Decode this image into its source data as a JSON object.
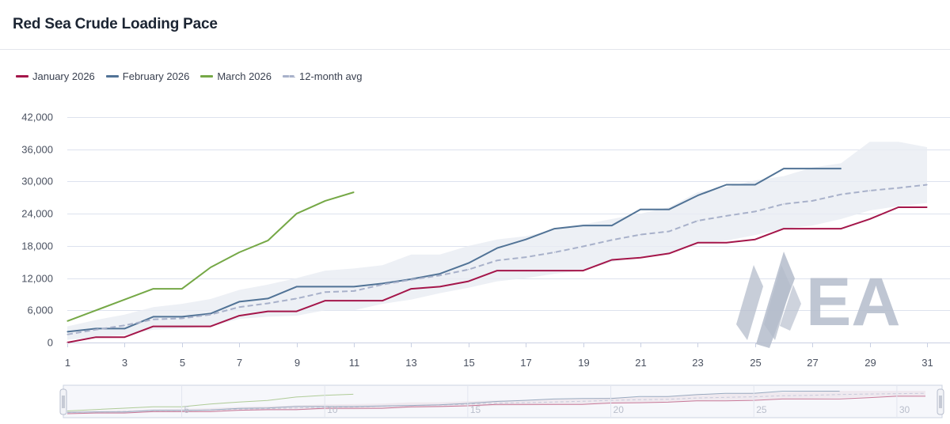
{
  "title": "Red Sea Crude Loading Pace",
  "legend": [
    {
      "name": "January 2026",
      "color": "#a4164a",
      "dashed": false
    },
    {
      "name": "February 2026",
      "color": "#517396",
      "dashed": false
    },
    {
      "name": "March 2026",
      "color": "#75a846",
      "dashed": false
    },
    {
      "name": "12-month avg",
      "color": "#a8b1ca",
      "dashed": true
    }
  ],
  "watermark": "EA",
  "chart_data": {
    "type": "line",
    "title": "Red Sea Crude Loading Pace",
    "xlabel": "",
    "ylabel": "",
    "ylim": [
      0,
      42000
    ],
    "xlim": [
      1,
      31
    ],
    "y_ticks": [
      0,
      6000,
      12000,
      18000,
      24000,
      30000,
      36000,
      42000
    ],
    "y_tick_labels": [
      "0",
      "6,000",
      "12,000",
      "18,000",
      "24,000",
      "30,000",
      "36,000",
      "42,000"
    ],
    "x_ticks": [
      1,
      3,
      5,
      7,
      9,
      11,
      13,
      15,
      17,
      19,
      21,
      23,
      25,
      27,
      29,
      31
    ],
    "x_tick_labels": [
      "1",
      "3",
      "5",
      "7",
      "9",
      "11",
      "13",
      "15",
      "17",
      "19",
      "21",
      "23",
      "25",
      "27",
      "29",
      "31"
    ],
    "navigator_tick_labels": [
      "5",
      "10",
      "15",
      "20",
      "25",
      "30"
    ],
    "navigator_ticks": [
      5,
      10,
      15,
      20,
      25,
      30
    ],
    "series": [
      {
        "name": "January 2026",
        "color": "#a4164a",
        "dashed": false,
        "x": [
          1,
          2,
          3,
          4,
          5,
          6,
          7,
          8,
          9,
          10,
          11,
          12,
          13,
          14,
          15,
          16,
          17,
          18,
          19,
          20,
          21,
          22,
          23,
          24,
          25,
          26,
          27,
          28,
          29,
          30,
          31
        ],
        "values": [
          0,
          1000,
          1000,
          3000,
          3000,
          3000,
          5000,
          5800,
          5800,
          7800,
          7800,
          7800,
          10000,
          10400,
          11400,
          13400,
          13400,
          13400,
          13400,
          15400,
          15800,
          16600,
          18600,
          18600,
          19200,
          21200,
          21200,
          21200,
          23000,
          25200,
          25200
        ]
      },
      {
        "name": "February 2026",
        "color": "#517396",
        "dashed": false,
        "x": [
          1,
          2,
          3,
          4,
          5,
          6,
          7,
          8,
          9,
          10,
          11,
          12,
          13,
          14,
          15,
          16,
          17,
          18,
          19,
          20,
          21,
          22,
          23,
          24,
          25,
          26,
          27,
          28
        ],
        "values": [
          2000,
          2600,
          2600,
          4800,
          4800,
          5400,
          7600,
          8200,
          10400,
          10400,
          10400,
          11000,
          11800,
          12800,
          14800,
          17600,
          19200,
          21200,
          21800,
          21800,
          24800,
          24800,
          27400,
          29400,
          29400,
          32400,
          32400,
          32400
        ]
      },
      {
        "name": "March 2026",
        "color": "#75a846",
        "dashed": false,
        "x": [
          1,
          2,
          3,
          4,
          5,
          6,
          7,
          8,
          9,
          10,
          11
        ],
        "values": [
          4000,
          6000,
          8000,
          10000,
          10000,
          14000,
          16800,
          19000,
          24000,
          26400,
          28000
        ]
      },
      {
        "name": "12-month avg",
        "color": "#a8b1ca",
        "dashed": true,
        "x": [
          1,
          2,
          3,
          4,
          5,
          6,
          7,
          8,
          9,
          10,
          11,
          12,
          13,
          14,
          15,
          16,
          17,
          18,
          19,
          20,
          21,
          22,
          23,
          24,
          25,
          26,
          27,
          28,
          29,
          30,
          31
        ],
        "values": [
          1500,
          2400,
          3200,
          4300,
          4500,
          5200,
          6600,
          7300,
          8200,
          9400,
          9600,
          10800,
          11700,
          12500,
          13600,
          15300,
          15900,
          16800,
          17900,
          19100,
          20100,
          20700,
          22700,
          23600,
          24400,
          25800,
          26400,
          27600,
          28300,
          28800,
          29400
        ]
      }
    ],
    "range_band": {
      "name": "12-month range",
      "x": [
        1,
        2,
        3,
        4,
        5,
        6,
        7,
        8,
        9,
        10,
        11,
        12,
        13,
        14,
        15,
        16,
        17,
        18,
        19,
        20,
        21,
        22,
        23,
        24,
        25,
        26,
        27,
        28,
        29,
        30,
        31
      ],
      "upper": [
        3000,
        4200,
        5200,
        6600,
        7200,
        8100,
        9800,
        10800,
        12000,
        13400,
        13800,
        14400,
        16400,
        16400,
        18000,
        19200,
        19800,
        21000,
        22000,
        23000,
        24000,
        25200,
        28000,
        29000,
        30200,
        31000,
        32600,
        33400,
        37400,
        37400,
        36400
      ],
      "lower": [
        500,
        1000,
        1400,
        2400,
        2600,
        3000,
        4400,
        4800,
        5000,
        6000,
        6000,
        7200,
        8000,
        9200,
        10200,
        11400,
        12000,
        12800,
        13400,
        15000,
        16000,
        16600,
        18400,
        19000,
        20000,
        21200,
        21800,
        23000,
        24600,
        25400,
        26000
      ]
    }
  }
}
